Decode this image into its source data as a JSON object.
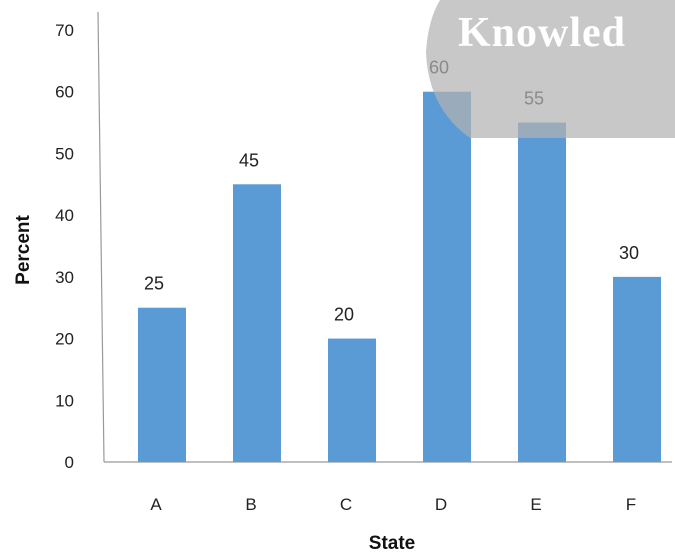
{
  "chart_data": {
    "type": "bar",
    "categories": [
      "A",
      "B",
      "C",
      "D",
      "E",
      "F"
    ],
    "values": [
      25,
      45,
      20,
      60,
      55,
      30
    ],
    "data_labels": [
      "25",
      "45",
      "20",
      "60",
      "55",
      "30"
    ],
    "xlabel": "State",
    "ylabel": "Percent",
    "ylim": [
      0,
      70
    ],
    "yticks": [
      0,
      10,
      20,
      30,
      40,
      50,
      60,
      70
    ],
    "grid": false,
    "bar_color": "#5b9bd5"
  },
  "watermark": {
    "text": "Knowled"
  }
}
